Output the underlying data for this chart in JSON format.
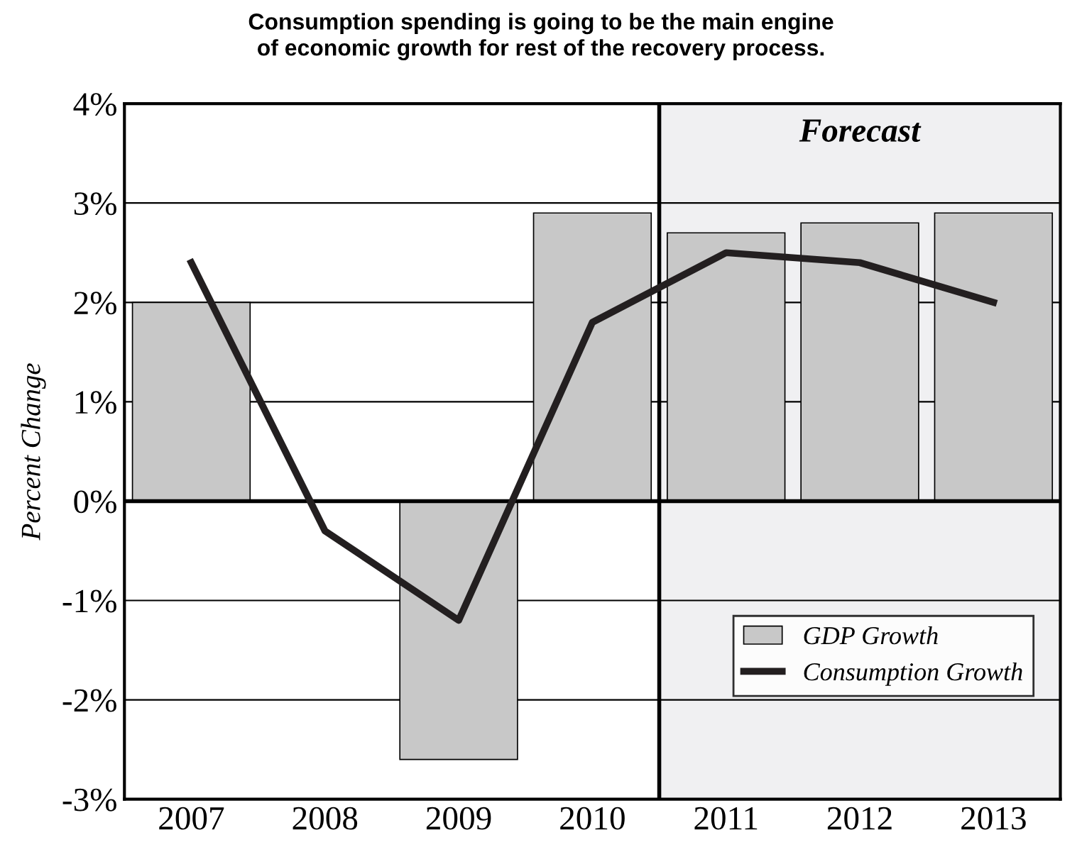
{
  "chart_data": {
    "type": "bar",
    "title": "Consumption spending is going to be the main engine\nof economic growth for rest of the recovery process.",
    "ylabel": "Percent Change",
    "categories": [
      "2007",
      "2008",
      "2009",
      "2010",
      "2011",
      "2012",
      "2013"
    ],
    "series": [
      {
        "name": "GDP Growth",
        "color": "#c8c8c8",
        "values": [
          2.0,
          null,
          -2.6,
          2.9,
          2.7,
          2.8,
          2.9
        ]
      },
      {
        "name": "Consumption Growth",
        "type": "line",
        "color": "#231f20",
        "values": [
          2.4,
          -0.3,
          -1.2,
          1.8,
          2.5,
          2.4,
          2.0
        ]
      }
    ],
    "bands": [
      {
        "axis": "x",
        "from": "2011",
        "to": "2013",
        "label": "Forecast",
        "color": "#f0f0f2"
      }
    ],
    "ylim": [
      -3,
      4
    ],
    "yticks": [
      {
        "value": -3,
        "label": "-3%"
      },
      {
        "value": -2,
        "label": "-2%"
      },
      {
        "value": -1,
        "label": "-1%"
      },
      {
        "value": 0,
        "label": "0%"
      },
      {
        "value": 1,
        "label": "1%"
      },
      {
        "value": 2,
        "label": "2%"
      },
      {
        "value": 3,
        "label": "3%"
      },
      {
        "value": 4,
        "label": "4%"
      }
    ],
    "grid": "y",
    "legend": "bottom right",
    "marker": "none"
  }
}
